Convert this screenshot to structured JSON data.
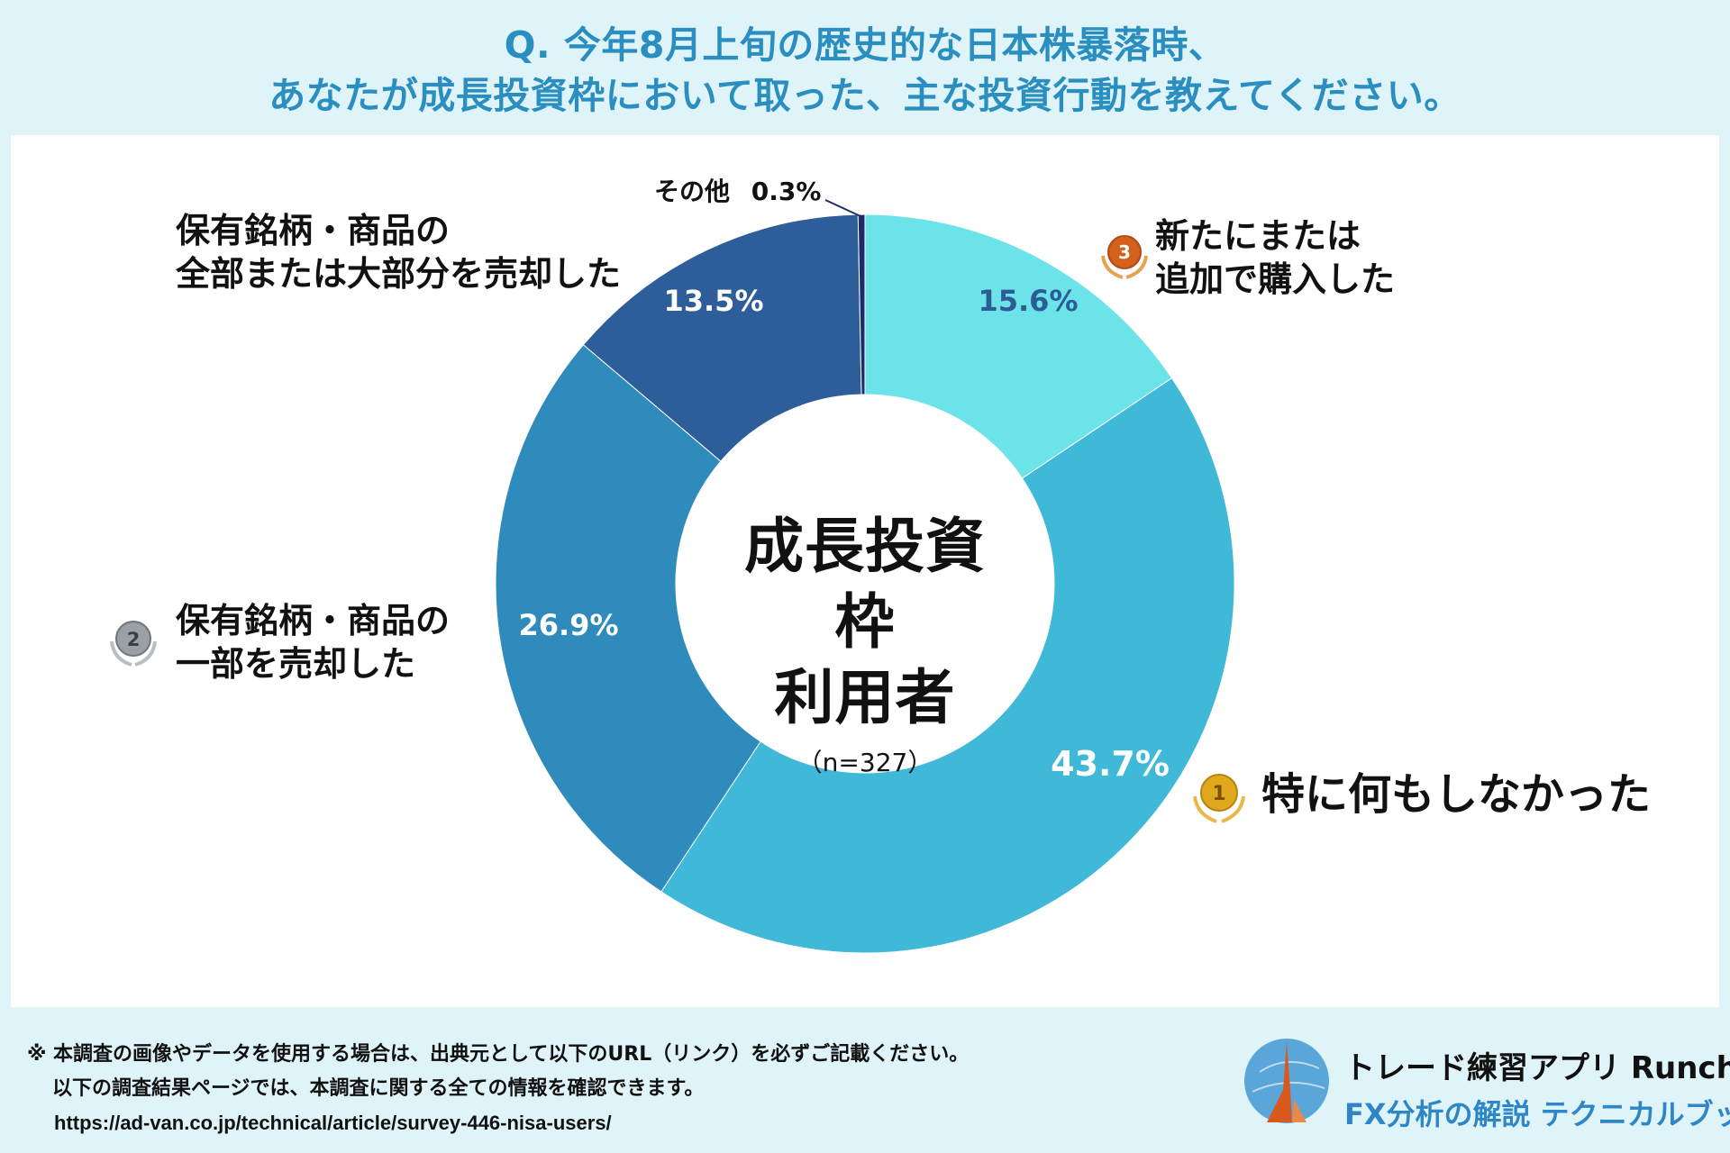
{
  "title": {
    "line1": "Q. 今年8月上旬の歴史的な日本株暴落時、",
    "line2": "あなたが成長投資枠において取った、主な投資行動を教えてください。"
  },
  "center": {
    "line1": "成長投資枠",
    "line2": "利用者",
    "n": "（n=327）"
  },
  "chart_data": {
    "type": "pie",
    "title": "Q. 今年8月上旬の歴史的な日本株暴落時、あなたが成長投資枠において取った、主な投資行動を教えてください。",
    "slices": [
      {
        "label": "新たにまたは追加で購入した",
        "value": 15.6,
        "display": "15.6%",
        "color": "#6be3e9",
        "label_color": "#2c5c94"
      },
      {
        "label": "特に何もしなかった",
        "value": 43.7,
        "display": "43.7%",
        "color": "#40b8d8",
        "label_color": "#ffffff"
      },
      {
        "label": "保有銘柄・商品の一部を売却した",
        "value": 26.9,
        "display": "26.9%",
        "color": "#2e8bbb",
        "label_color": "#ffffff"
      },
      {
        "label": "保有銘柄・商品の全部または大部分を売却した",
        "value": 13.5,
        "display": "13.5%",
        "color": "#2e5e99",
        "label_color": "#ffffff"
      },
      {
        "label": "その他",
        "value": 0.3,
        "display": "0.3%",
        "color": "#1c2b6b",
        "label_color": "#111111"
      }
    ]
  },
  "categories": {
    "buy": {
      "line1": "新たにまたは",
      "line2": "追加で購入した",
      "rank": "3"
    },
    "nothing": {
      "line1": "特に何もしなかった",
      "rank": "1"
    },
    "partial": {
      "line1": "保有銘柄・商品の",
      "line2": "一部を売却した",
      "rank": "2"
    },
    "all": {
      "line1": "保有銘柄・商品の",
      "line2": "全部または大部分を売却した"
    },
    "other": {
      "label": "その他",
      "pct": "0.3%"
    }
  },
  "colors": {
    "gold": "#e0a81c",
    "silver": "#9aa0a6",
    "bronze": "#d4621f"
  },
  "footer": {
    "note1": "※ 本調査の画像やデータを使用する場合は、出典元として以下のURL（リンク）を必ずご記載ください。",
    "note2": "以下の調査結果ページでは、本調査に関する全ての情報を確認できます。",
    "url": "https://ad-van.co.jp/technical/article/survey-446-nisa-users/",
    "brand_line1": "トレード練習アプリ Runcha",
    "brand_line2": "FX分析の解説 テクニカルブック"
  }
}
